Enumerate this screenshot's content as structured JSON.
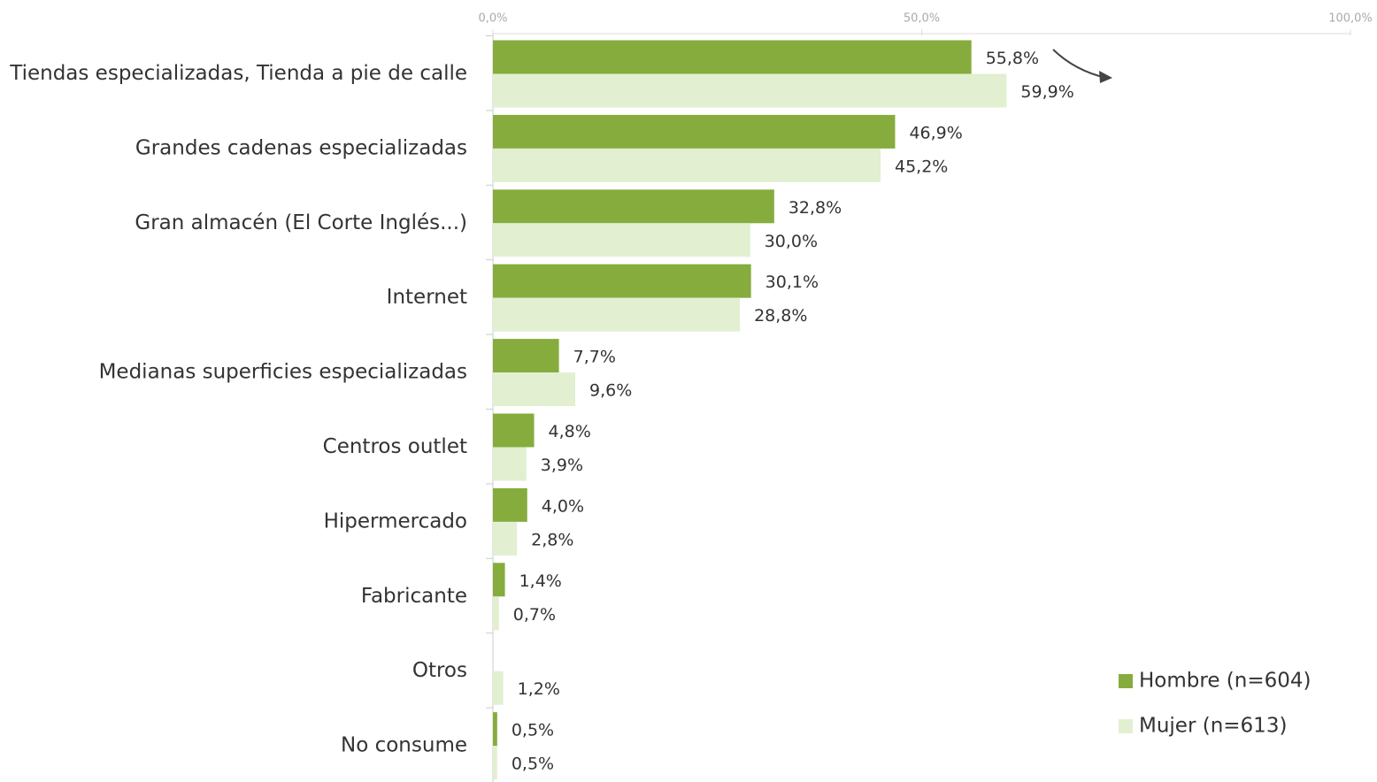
{
  "chart_data": {
    "type": "bar",
    "orientation": "horizontal",
    "categories": [
      "Tiendas especializadas, Tienda a pie de calle",
      "Grandes cadenas especializadas",
      "Gran almacén (El Corte Inglés...)",
      "Internet",
      "Medianas superficies especializadas",
      "Centros outlet",
      "Hipermercado",
      "Fabricante",
      "Otros",
      "No consume"
    ],
    "series": [
      {
        "name": "Hombre (n=604)",
        "color": "#86ac3e",
        "values": [
          55.8,
          46.9,
          32.8,
          30.1,
          7.7,
          4.8,
          4.0,
          1.4,
          null,
          0.5
        ],
        "value_labels": [
          "55,8%",
          "46,9%",
          "32,8%",
          "30,1%",
          "7,7%",
          "4,8%",
          "4,0%",
          "1,4%",
          null,
          "0,5%"
        ]
      },
      {
        "name": "Mujer (n=613)",
        "color": "#e2efd0",
        "values": [
          59.9,
          45.2,
          30.0,
          28.8,
          9.6,
          3.9,
          2.8,
          0.7,
          1.2,
          0.5
        ],
        "value_labels": [
          "59,9%",
          "45,2%",
          "30,0%",
          "28,8%",
          "9,6%",
          "3,9%",
          "2,8%",
          "0,7%",
          "1,2%",
          "0,5%"
        ]
      }
    ],
    "xlim": [
      0,
      100
    ],
    "xticks": [
      {
        "value": 0,
        "label": "0,0%"
      },
      {
        "value": 50,
        "label": "50,0%"
      },
      {
        "value": 100,
        "label": "100,0%"
      }
    ],
    "legend": "lower right"
  }
}
